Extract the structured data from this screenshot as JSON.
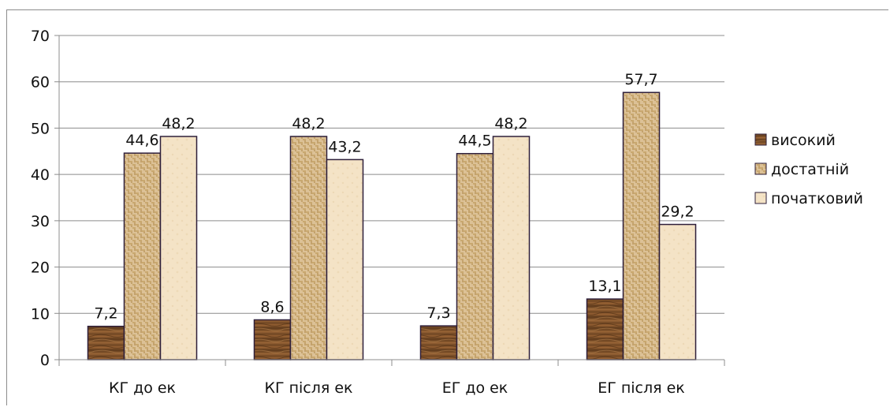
{
  "chart_data": {
    "type": "bar",
    "categories": [
      "КГ до ек",
      "КГ після ек",
      "ЕГ до ек",
      "ЕГ після ек"
    ],
    "series": [
      {
        "name": "високий",
        "values": [
          7.2,
          8.6,
          7.3,
          13.1
        ],
        "labels": [
          "7,2",
          "8,6",
          "7,3",
          "13,1"
        ],
        "color": "#8b5a2b",
        "pattern": "wood"
      },
      {
        "name": "достатній",
        "values": [
          44.6,
          48.2,
          44.5,
          57.7
        ],
        "labels": [
          "44,6",
          "48,2",
          "44,5",
          "57,7"
        ],
        "color": "#d8bc8e",
        "pattern": "weave"
      },
      {
        "name": "початковий",
        "values": [
          48.2,
          43.2,
          48.2,
          29.2
        ],
        "labels": [
          "48,2",
          "43,2",
          "48,2",
          "29,2"
        ],
        "color": "#f3e2c4",
        "pattern": "paper"
      }
    ],
    "yticks": [
      "0",
      "10",
      "20",
      "30",
      "40",
      "50",
      "60",
      "70"
    ],
    "ylim": [
      0,
      70
    ],
    "grid": true,
    "legend_position": "right",
    "bar_outline_color": "#2e1f3a"
  }
}
